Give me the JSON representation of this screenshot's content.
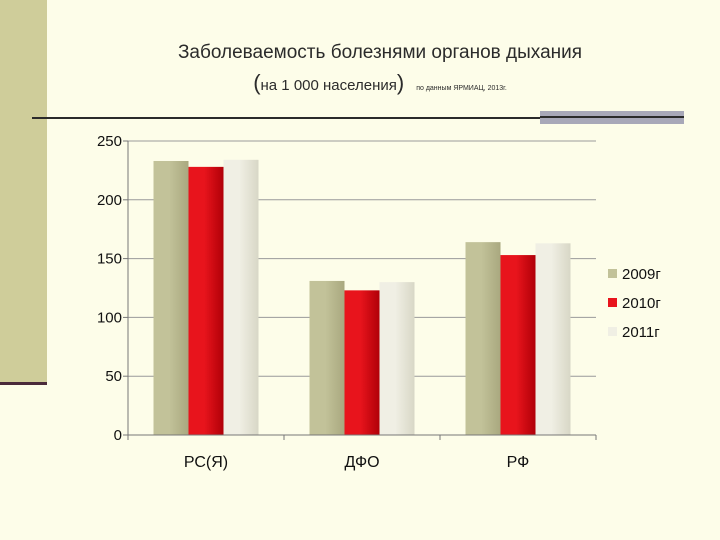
{
  "header": {
    "title": "Заболеваемость болезнями органов дыхания",
    "subtitle_open": "(",
    "subtitle_main": "на 1 000 населения",
    "subtitle_close": ")",
    "subtitle_source": "по данным ЯРМИАЦ, 2013г."
  },
  "colors": {
    "background": "#fdfde9",
    "left_bar": "#cfcd9a",
    "series_2009": "#c2c299",
    "series_2010": "#e8141c",
    "series_2011": "#f0efe4"
  },
  "chart_data": {
    "type": "bar",
    "categories": [
      "РС(Я)",
      "ДФО",
      "РФ"
    ],
    "series": [
      {
        "name": "2009г",
        "values": [
          233,
          131,
          164
        ]
      },
      {
        "name": "2010г",
        "values": [
          228,
          123,
          153
        ]
      },
      {
        "name": "2011г",
        "values": [
          234,
          130,
          163
        ]
      }
    ],
    "ylim": [
      0,
      250
    ],
    "yticks": [
      0,
      50,
      100,
      150,
      200,
      250
    ],
    "grid": true,
    "legend_position": "right"
  }
}
